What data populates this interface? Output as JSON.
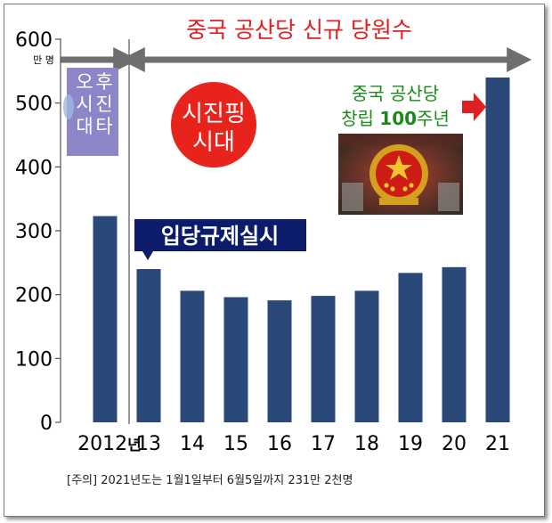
{
  "chart_data": {
    "type": "bar",
    "title": "중국 공산당 신규 당원수",
    "y_unit": "만 명",
    "categories": [
      "2012",
      "13",
      "14",
      "15",
      "16",
      "17",
      "18",
      "19",
      "20",
      "21"
    ],
    "year_suffix": "년",
    "values": [
      323,
      240,
      206,
      196,
      191,
      198,
      206,
      234,
      243,
      540
    ],
    "ylim": [
      0,
      600
    ],
    "yticks": [
      "0",
      "100",
      "200",
      "300",
      "400",
      "500",
      "600"
    ],
    "xlabel": "",
    "ylabel": "",
    "grid": false,
    "bar_color": "#2a4978"
  },
  "annotations": {
    "hu_era": "후진타오 시대",
    "xi_era": "시진핑 시대",
    "regulation": "입당규제실시",
    "centennial_line1": "중국 공산당",
    "centennial_line2_prefix": "창립 ",
    "centennial_line2_number": "100",
    "centennial_line2_suffix": "주년",
    "note": "[주의] 2021년도는 1월1일부터 6월5일까지 231만 2천명"
  },
  "colors": {
    "title_red": "#e02020",
    "hu_box": "#8a86c8",
    "xi_circle": "#e8231c",
    "regulation_box": "#0c1c6a",
    "centennial_green": "#1a8a1a",
    "arrow_gray": "#6e6e6e"
  }
}
